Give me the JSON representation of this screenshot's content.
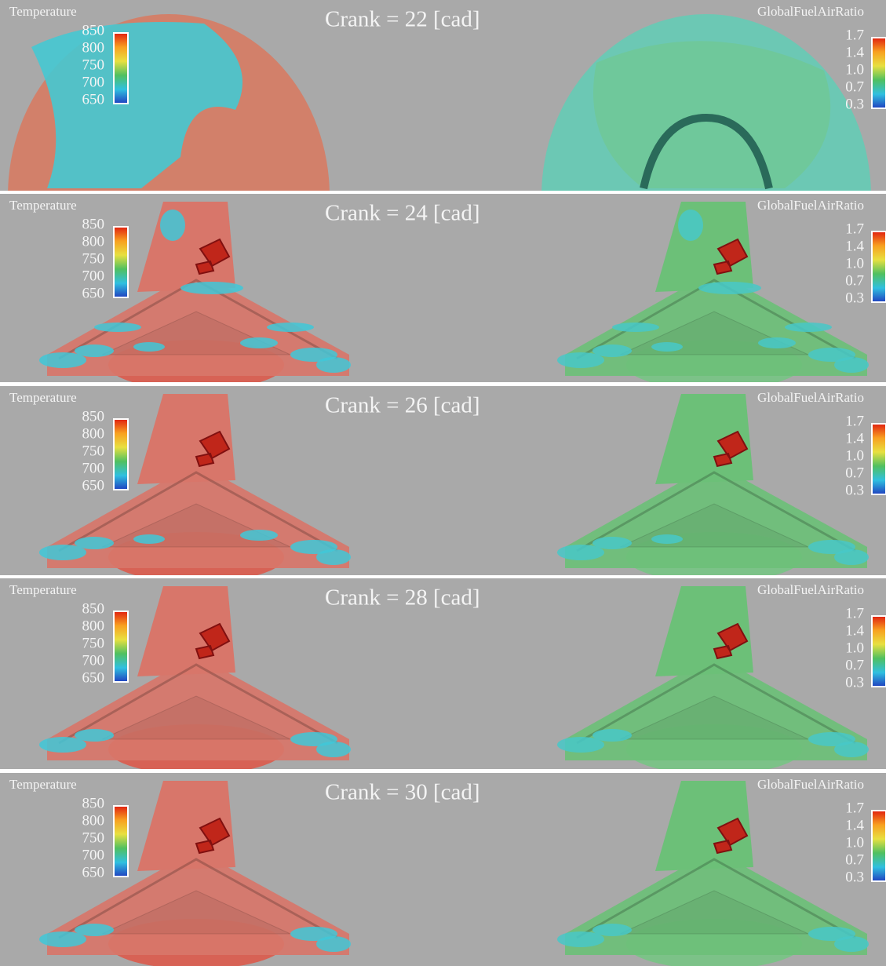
{
  "panels": [
    {
      "crank": "Crank = 22 [cad]",
      "left_label": "Temperature",
      "left_ticks": [
        "850",
        "800",
        "750",
        "700",
        "650"
      ],
      "right_label": "GlobalFuelAirRatio",
      "right_ticks": [
        "1.7",
        "1.4",
        "1.0",
        "0.7",
        "0.3"
      ]
    },
    {
      "crank": "Crank = 24 [cad]",
      "left_label": "Temperature",
      "left_ticks": [
        "850",
        "800",
        "750",
        "700",
        "650"
      ],
      "right_label": "GlobalFuelAirRatio",
      "right_ticks": [
        "1.7",
        "1.4",
        "1.0",
        "0.7",
        "0.3"
      ]
    },
    {
      "crank": "Crank = 26 [cad]",
      "left_label": "Temperature",
      "left_ticks": [
        "850",
        "800",
        "750",
        "700",
        "650"
      ],
      "right_label": "GlobalFuelAirRatio",
      "right_ticks": [
        "1.7",
        "1.4",
        "1.0",
        "0.7",
        "0.3"
      ]
    },
    {
      "crank": "Crank = 28 [cad]",
      "left_label": "Temperature",
      "left_ticks": [
        "850",
        "800",
        "750",
        "700",
        "650"
      ],
      "right_label": "GlobalFuelAirRatio",
      "right_ticks": [
        "1.7",
        "1.4",
        "1.0",
        "0.7",
        "0.3"
      ]
    },
    {
      "crank": "Crank = 30 [cad]",
      "left_label": "Temperature",
      "left_ticks": [
        "850",
        "800",
        "750",
        "700",
        "650"
      ],
      "right_label": "GlobalFuelAirRatio",
      "right_ticks": [
        "1.7",
        "1.4",
        "1.0",
        "0.7",
        "0.3"
      ]
    }
  ]
}
